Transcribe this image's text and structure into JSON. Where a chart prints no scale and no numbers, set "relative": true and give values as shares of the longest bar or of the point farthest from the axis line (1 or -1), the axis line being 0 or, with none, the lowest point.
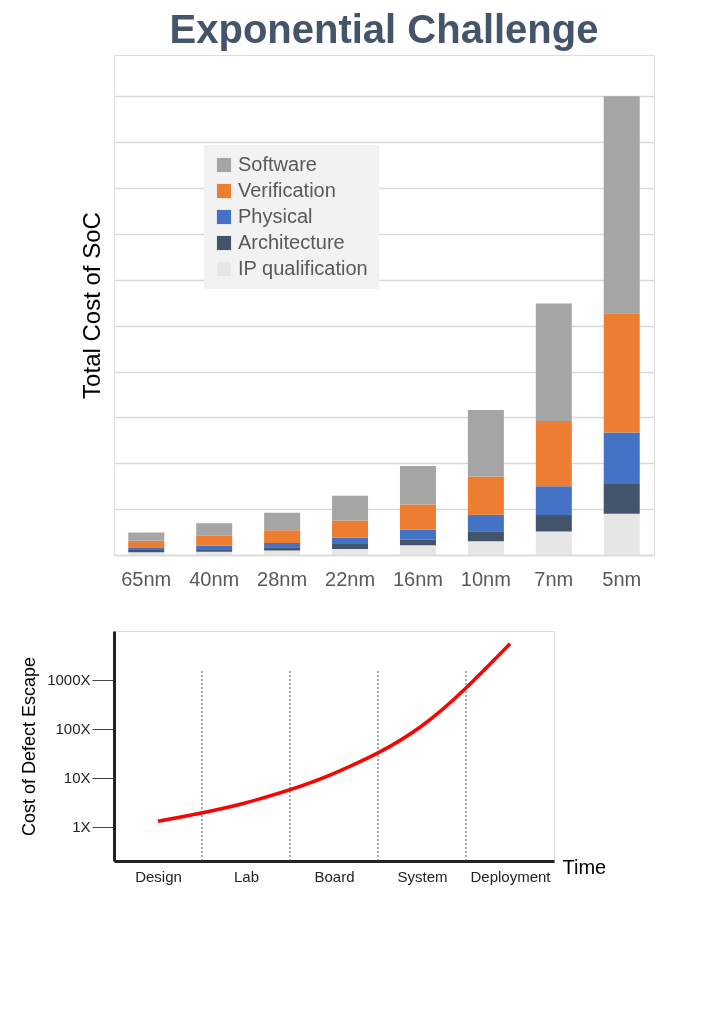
{
  "chart_data": [
    {
      "type": "bar",
      "title": "Exponential Challenge",
      "ylabel": "Total Cost of SoC",
      "relative": true,
      "stacked": true,
      "grid": "y",
      "legend": "top left",
      "categories": [
        "65nm",
        "40nm",
        "28nm",
        "22nm",
        "16nm",
        "10nm",
        "7nm",
        "5nm"
      ],
      "series": [
        {
          "name": "IP qualification",
          "color": "#e7e6e6",
          "values": [
            0.006,
            0.007,
            0.01,
            0.013,
            0.021,
            0.03,
            0.051,
            0.09
          ]
        },
        {
          "name": "Architecture",
          "color": "#44546a",
          "values": [
            0.005,
            0.004,
            0.007,
            0.011,
            0.013,
            0.022,
            0.036,
            0.065
          ]
        },
        {
          "name": "Physical",
          "color": "#4472c4",
          "values": [
            0.004,
            0.009,
            0.009,
            0.014,
            0.021,
            0.036,
            0.063,
            0.112
          ]
        },
        {
          "name": "Verification",
          "color": "#ed7d31",
          "values": [
            0.016,
            0.022,
            0.028,
            0.037,
            0.055,
            0.083,
            0.142,
            0.26
          ]
        },
        {
          "name": "Software",
          "color": "#a5a5a5",
          "values": [
            0.018,
            0.027,
            0.038,
            0.054,
            0.084,
            0.145,
            0.256,
            0.473
          ]
        }
      ]
    },
    {
      "type": "line",
      "ylabel": "Cost of Defect Escape",
      "xlabel": "Time",
      "log": "y",
      "grid": "x",
      "marker": "none",
      "line_style": "solid",
      "categories": [
        "Design",
        "Lab",
        "Board",
        "System",
        "Deployment"
      ],
      "ylim": [
        0.2,
        10000
      ],
      "yticks": [
        {
          "value": 1,
          "label": "1X"
        },
        {
          "value": 10,
          "label": "10X"
        },
        {
          "value": 100,
          "label": "100X"
        },
        {
          "value": 1000,
          "label": "1000X"
        }
      ],
      "series": [
        {
          "color": "#ff0000",
          "values": [
            1.3,
            3.1,
            12.3,
            116,
            5500
          ]
        }
      ]
    }
  ]
}
